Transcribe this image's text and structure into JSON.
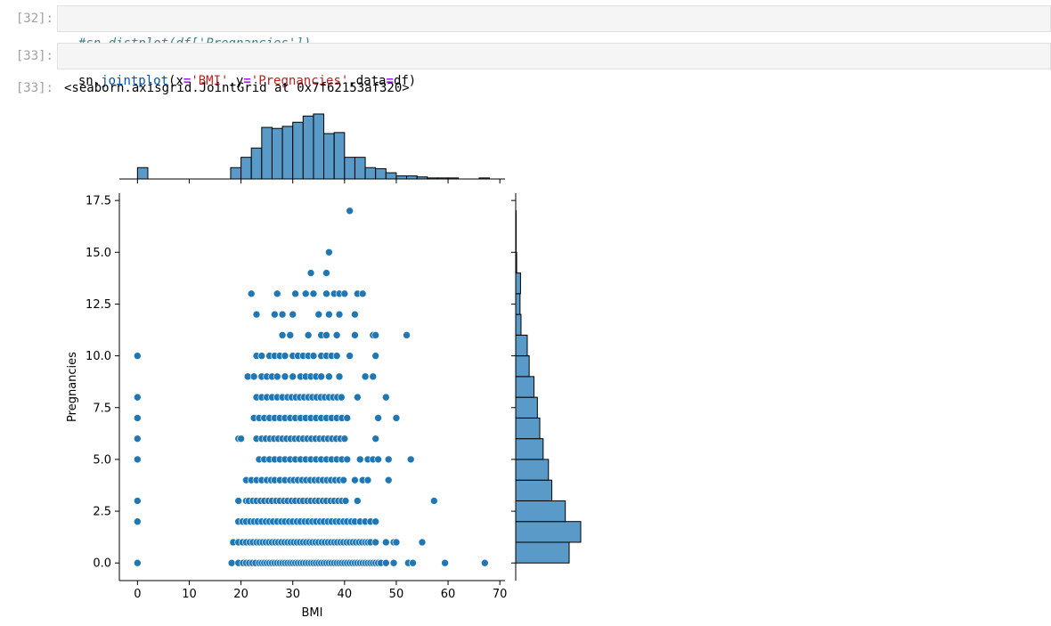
{
  "cells": [
    {
      "prompt": "[32]:",
      "code_comment": "#sn.distplot(df['Pregnancies'])"
    },
    {
      "prompt": "[33]:",
      "code_tokens": [
        {
          "t": "sn.",
          "c": "plain"
        },
        {
          "t": "jointplot",
          "c": "fn"
        },
        {
          "t": "(x",
          "c": "plain"
        },
        {
          "t": "=",
          "c": "op"
        },
        {
          "t": "'BMI'",
          "c": "str"
        },
        {
          "t": ",y",
          "c": "plain"
        },
        {
          "t": "=",
          "c": "op"
        },
        {
          "t": "'Pregnancies'",
          "c": "str"
        },
        {
          "t": ",data",
          "c": "plain"
        },
        {
          "t": "=",
          "c": "op"
        },
        {
          "t": "df)",
          "c": "plain"
        }
      ]
    },
    {
      "prompt": "[33]:",
      "output": "<seaborn.axisgrid.JointGrid at 0x7f62153af320>"
    }
  ],
  "colors": {
    "accent": "#1f77b4",
    "hist": "#5a9ac8"
  },
  "chart_data": {
    "type": "scatter",
    "xlabel": "BMI",
    "ylabel": "Pregnancies",
    "xlim": [
      -3.5,
      71
    ],
    "ylim": [
      -0.85,
      17.85
    ],
    "xticks": [
      "0",
      "10",
      "20",
      "30",
      "40",
      "50",
      "60",
      "70"
    ],
    "yticks": [
      "0.0",
      "2.5",
      "5.0",
      "7.5",
      "10.0",
      "12.5",
      "15.0",
      "17.5"
    ],
    "x_marginal_hist": {
      "bin_width": 2,
      "bins": [
        {
          "x0": 0,
          "count": 11
        },
        {
          "x0": 18,
          "count": 11
        },
        {
          "x0": 20,
          "count": 21
        },
        {
          "x0": 22,
          "count": 30
        },
        {
          "x0": 24,
          "count": 50
        },
        {
          "x0": 26,
          "count": 49
        },
        {
          "x0": 28,
          "count": 51
        },
        {
          "x0": 30,
          "count": 55
        },
        {
          "x0": 32,
          "count": 61
        },
        {
          "x0": 34,
          "count": 63
        },
        {
          "x0": 36,
          "count": 44
        },
        {
          "x0": 38,
          "count": 45
        },
        {
          "x0": 40,
          "count": 21
        },
        {
          "x0": 42,
          "count": 21
        },
        {
          "x0": 44,
          "count": 11
        },
        {
          "x0": 46,
          "count": 10
        },
        {
          "x0": 48,
          "count": 6
        },
        {
          "x0": 50,
          "count": 3
        },
        {
          "x0": 52,
          "count": 3
        },
        {
          "x0": 54,
          "count": 2
        },
        {
          "x0": 56,
          "count": 1
        },
        {
          "x0": 58,
          "count": 1
        },
        {
          "x0": 60,
          "count": 1
        },
        {
          "x0": 66,
          "count": 1
        }
      ]
    },
    "y_marginal_hist": {
      "bins": [
        {
          "y0": 0,
          "y1": 1,
          "count": 111
        },
        {
          "y0": 1,
          "y1": 2,
          "count": 135
        },
        {
          "y0": 2,
          "y1": 3,
          "count": 103
        },
        {
          "y0": 3,
          "y1": 4,
          "count": 75
        },
        {
          "y0": 4,
          "y1": 5,
          "count": 68
        },
        {
          "y0": 5,
          "y1": 6,
          "count": 57
        },
        {
          "y0": 6,
          "y1": 7,
          "count": 50
        },
        {
          "y0": 7,
          "y1": 8,
          "count": 45
        },
        {
          "y0": 8,
          "y1": 9,
          "count": 38
        },
        {
          "y0": 9,
          "y1": 10,
          "count": 28
        },
        {
          "y0": 10,
          "y1": 11,
          "count": 24
        },
        {
          "y0": 11,
          "y1": 12,
          "count": 11
        },
        {
          "y0": 12,
          "y1": 13,
          "count": 9
        },
        {
          "y0": 13,
          "y1": 14,
          "count": 10
        },
        {
          "y0": 14,
          "y1": 15,
          "count": 2
        },
        {
          "y0": 15,
          "y1": 16,
          "count": 1
        },
        {
          "y0": 16,
          "y1": 17,
          "count": 1
        }
      ]
    },
    "points": [
      {
        "y": 0,
        "x": [
          0,
          18.2,
          19.5,
          20.4,
          21,
          21.6,
          22.2,
          22.8,
          23.5,
          24,
          24.5,
          25,
          25.5,
          26,
          26.5,
          27,
          27.5,
          28,
          28.5,
          29,
          29.5,
          30,
          30.5,
          31,
          31.5,
          32,
          32.5,
          33,
          33.5,
          34,
          34.5,
          35,
          35.5,
          36,
          36.5,
          37,
          37.5,
          38,
          38.5,
          39,
          39.5,
          40,
          40.5,
          41,
          41.5,
          42,
          42.5,
          43,
          43.5,
          44,
          44.5,
          45,
          45.5,
          46,
          46.5,
          47,
          48,
          49.5,
          52.3,
          53.2,
          59.4,
          67.1
        ]
      },
      {
        "y": 1,
        "x": [
          18.5,
          19.5,
          20.3,
          21,
          21.7,
          22.3,
          23,
          23.6,
          24.2,
          24.8,
          25.4,
          26,
          26.6,
          27.2,
          27.8,
          28.4,
          29,
          29.6,
          30.2,
          30.8,
          31.4,
          32,
          32.6,
          33.2,
          33.8,
          34.4,
          35,
          35.6,
          36.2,
          36.8,
          37.4,
          38,
          38.6,
          39.2,
          39.8,
          40.4,
          41,
          41.6,
          42.2,
          42.8,
          43.4,
          44,
          44.5,
          45,
          46,
          48,
          49.5,
          50,
          55
        ]
      },
      {
        "y": 2,
        "x": [
          0,
          19.5,
          20.3,
          21,
          21.8,
          22.5,
          23.2,
          24,
          24.8,
          25.5,
          26.2,
          27,
          27.8,
          28.5,
          29.3,
          30,
          30.8,
          31.5,
          32.3,
          33,
          33.8,
          34.5,
          35.3,
          36,
          36.8,
          37.5,
          38.3,
          39,
          39.8,
          40.5,
          41.3,
          42,
          43,
          44,
          45,
          46
        ]
      },
      {
        "y": 3,
        "x": [
          0,
          19.5,
          21,
          21.5,
          22.3,
          23,
          23.8,
          24.5,
          25.3,
          26,
          26.8,
          27.5,
          28.3,
          29,
          29.8,
          30.5,
          31.3,
          32,
          32.8,
          33.5,
          34.3,
          35,
          35.8,
          36.5,
          37.3,
          38,
          38.8,
          39.5,
          40.2,
          42.5,
          57.3
        ]
      },
      {
        "y": 4,
        "x": [
          21,
          22,
          23,
          24,
          25,
          25.8,
          26.5,
          27.5,
          28.5,
          29.5,
          30.2,
          31,
          31.8,
          32.6,
          33.4,
          34.2,
          35,
          35.8,
          36.6,
          37.4,
          38.2,
          39,
          39.8,
          42,
          43.5,
          44.5,
          48.5
        ]
      },
      {
        "y": 5,
        "x": [
          0,
          23.5,
          24.5,
          25.5,
          26.5,
          27.5,
          28.5,
          29.5,
          30.5,
          31.5,
          32.5,
          33.5,
          34.5,
          35.5,
          36.5,
          37.5,
          38.5,
          39.5,
          40.5,
          43,
          44.5,
          45.5,
          46.5,
          48.5,
          52.8
        ]
      },
      {
        "y": 6,
        "x": [
          0,
          19.5,
          20,
          23,
          24,
          24.8,
          25.6,
          26.4,
          27.2,
          28,
          28.8,
          29.6,
          30.4,
          31.2,
          32,
          32.8,
          33.6,
          34.4,
          35.2,
          36,
          36.8,
          37.6,
          38.4,
          39.2,
          40,
          46
        ]
      },
      {
        "y": 7,
        "x": [
          0,
          22.5,
          23.5,
          24.5,
          25.5,
          26.5,
          27.5,
          28.5,
          29.5,
          30.5,
          31.5,
          32.5,
          33.5,
          34.5,
          35.5,
          36.5,
          37.5,
          38.5,
          39.5,
          40.5,
          46.5,
          50
        ]
      },
      {
        "y": 8,
        "x": [
          0,
          23,
          24,
          25,
          26,
          27,
          28,
          29,
          29.8,
          30.6,
          31.4,
          32.2,
          33,
          33.8,
          34.6,
          35.4,
          36.2,
          37,
          37.8,
          38.6,
          39.4,
          42.5,
          48
        ]
      },
      {
        "y": 9,
        "x": [
          21.3,
          22.5,
          24,
          25,
          26,
          27,
          28.5,
          30,
          31.5,
          32.5,
          33.5,
          34.5,
          35.5,
          37,
          39,
          44,
          45.5
        ]
      },
      {
        "y": 10,
        "x": [
          0,
          23,
          24,
          25.5,
          26.5,
          27.5,
          28.5,
          30,
          31,
          32,
          33,
          34,
          35.5,
          36.5,
          37.5,
          38.5,
          41,
          46
        ]
      },
      {
        "y": 11,
        "x": [
          28,
          29.5,
          33,
          35.5,
          36.5,
          38.5,
          42,
          45.5,
          46,
          52
        ]
      },
      {
        "y": 12,
        "x": [
          23,
          26.5,
          28,
          30,
          35,
          37,
          39,
          42
        ]
      },
      {
        "y": 13,
        "x": [
          22,
          27,
          30.5,
          32.5,
          34,
          36.5,
          38,
          39,
          40,
          42.5,
          43.5
        ]
      },
      {
        "y": 14,
        "x": [
          33.5,
          36.5
        ]
      },
      {
        "y": 15,
        "x": [
          37
        ]
      },
      {
        "y": 17,
        "x": [
          41
        ]
      }
    ]
  }
}
